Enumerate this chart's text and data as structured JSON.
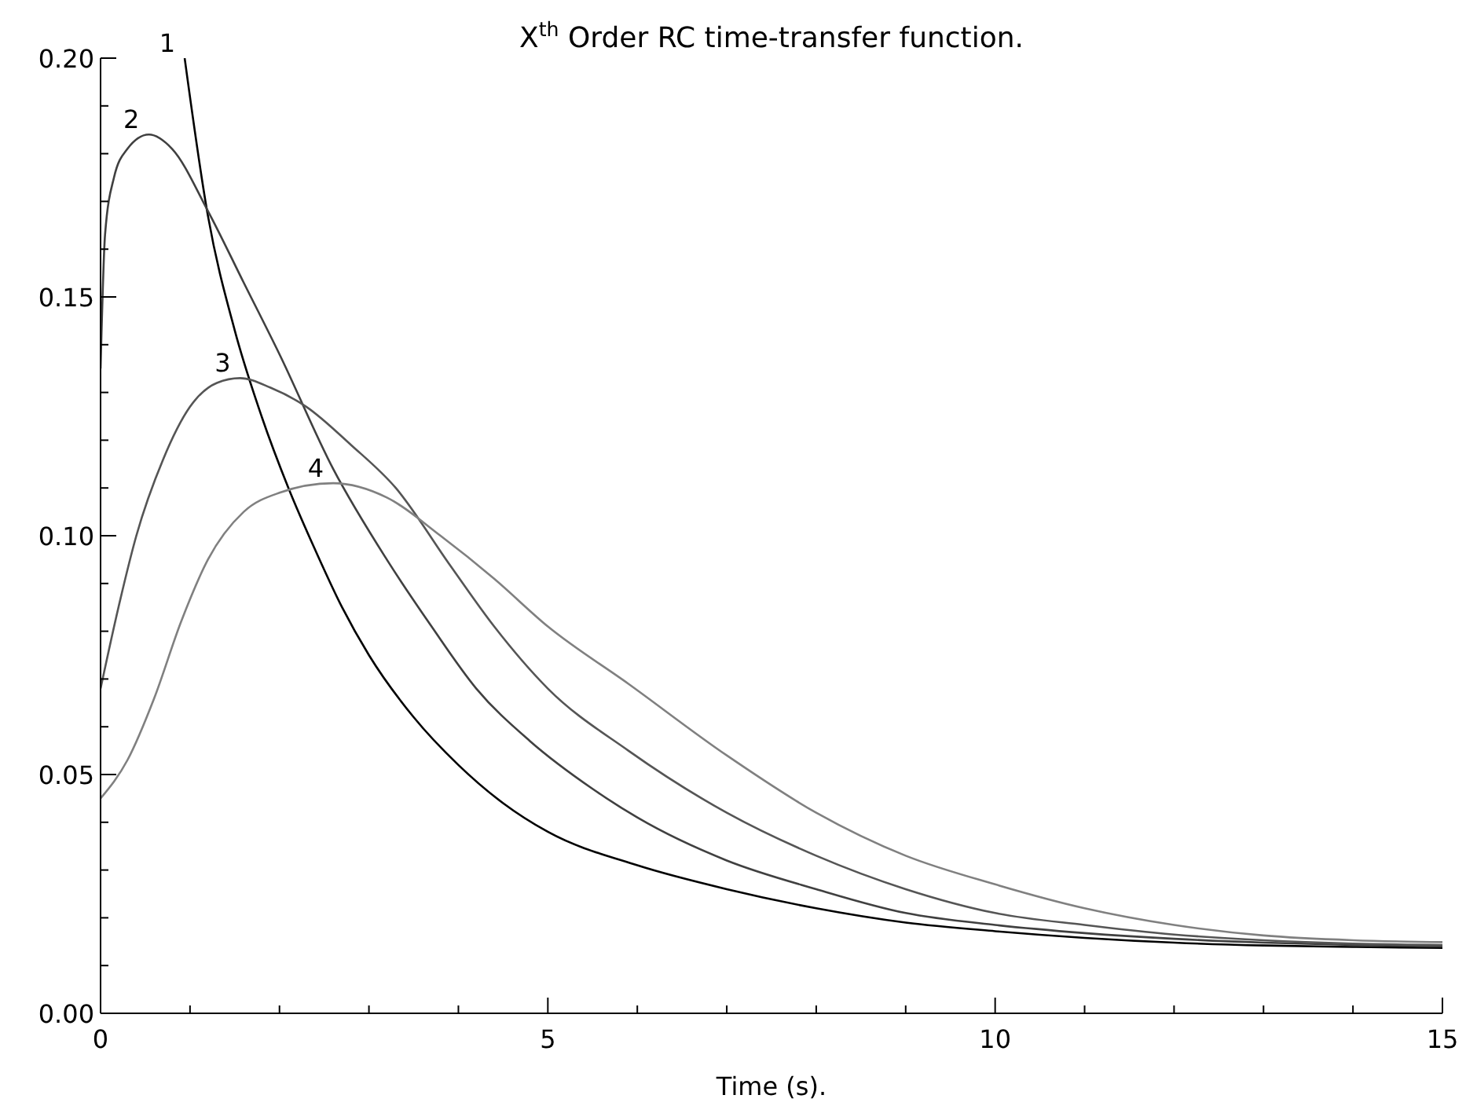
{
  "chart_data": {
    "type": "line",
    "title": "X$^{th}$ Order RC time-transfer function.",
    "xlabel": "Time (s).",
    "xlim": [
      0,
      15
    ],
    "xticks": [
      0,
      {
        "value": 1,
        "label": null
      },
      {
        "value": 2,
        "label": null
      },
      {
        "value": 3,
        "label": null
      },
      {
        "value": 4,
        "label": null
      },
      5,
      {
        "value": 6,
        "label": null
      },
      {
        "value": 7,
        "label": null
      },
      {
        "value": 8,
        "label": null
      },
      {
        "value": 9,
        "label": null
      },
      10,
      {
        "value": 11,
        "label": null
      },
      {
        "value": 12,
        "label": null
      },
      {
        "value": 13,
        "label": null
      },
      {
        "value": 14,
        "label": null
      },
      15
    ],
    "ylim": [
      0,
      0.2
    ],
    "yticks": [
      {
        "value": 0,
        "label": "0.00"
      },
      {
        "value": 0.01,
        "label": null
      },
      {
        "value": 0.02,
        "label": null
      },
      {
        "value": 0.03,
        "label": null
      },
      {
        "value": 0.04,
        "label": null
      },
      {
        "value": 0.05,
        "label": "0.05"
      },
      {
        "value": 0.06,
        "label": null
      },
      {
        "value": 0.07,
        "label": null
      },
      {
        "value": 0.08,
        "label": null
      },
      {
        "value": 0.09,
        "label": null
      },
      {
        "value": 0.1,
        "label": "0.10"
      },
      {
        "value": 0.11,
        "label": null
      },
      {
        "value": 0.12,
        "label": null
      },
      {
        "value": 0.13,
        "label": null
      },
      {
        "value": 0.14,
        "label": null
      },
      {
        "value": 0.15,
        "label": "0.15"
      },
      {
        "value": 0.16,
        "label": null
      },
      {
        "value": 0.17,
        "label": null
      },
      {
        "value": 0.18,
        "label": null
      },
      {
        "value": 0.19,
        "label": null
      },
      {
        "value": 0.2,
        "label": "0.20"
      }
    ],
    "grid": false,
    "legend": false,
    "marker": "none",
    "line_style": "solid",
    "series": [
      {
        "name": "1",
        "color": "#000000",
        "x": [
          0.94,
          1.2,
          1.5,
          1.8,
          2.1,
          2.4,
          2.7,
          3.0,
          3.5,
          4.0,
          4.5,
          5,
          6,
          7,
          8,
          9,
          10,
          11,
          12,
          13,
          14,
          15
        ],
        "values": [
          0.2,
          0.167,
          0.143,
          0.125,
          0.11,
          0.097,
          0.085,
          0.075,
          0.062,
          0.052,
          0.044,
          0.038,
          0.031,
          0.026,
          0.022,
          0.019,
          0.0172,
          0.0158,
          0.0148,
          0.0142,
          0.0139,
          0.0137
        ]
      },
      {
        "name": "2",
        "color": "#404040",
        "x": [
          0,
          0.05,
          0.15,
          0.3,
          0.54,
          0.8,
          1.2,
          1.6,
          2.0,
          2.6,
          3.2,
          3.7,
          4.2,
          4.8,
          5.5,
          6,
          7,
          8,
          9,
          10,
          11,
          12,
          13,
          14,
          15
        ],
        "values": [
          0.135,
          0.163,
          0.175,
          0.181,
          0.184,
          0.181,
          0.168,
          0.153,
          0.138,
          0.114,
          0.095,
          0.081,
          0.068,
          0.057,
          0.047,
          0.041,
          0.032,
          0.026,
          0.021,
          0.0185,
          0.0168,
          0.0156,
          0.0148,
          0.0143,
          0.014
        ]
      },
      {
        "name": "3",
        "color": "#555555",
        "x": [
          0,
          0.2,
          0.4,
          0.7,
          1.0,
          1.3,
          1.56,
          1.9,
          2.3,
          2.8,
          3.3,
          3.9,
          4.4,
          5,
          5.9,
          7,
          8,
          9,
          10,
          11,
          12,
          13,
          14,
          15
        ],
        "values": [
          0.068,
          0.085,
          0.1,
          0.116,
          0.127,
          0.132,
          0.133,
          0.131,
          0.127,
          0.119,
          0.11,
          0.094,
          0.081,
          0.068,
          0.055,
          0.042,
          0.033,
          0.026,
          0.021,
          0.0185,
          0.0165,
          0.0153,
          0.0146,
          0.0143
        ]
      },
      {
        "name": "4",
        "color": "#808080",
        "x": [
          0,
          0.3,
          0.6,
          0.9,
          1.2,
          1.6,
          2.0,
          2.6,
          3.2,
          3.8,
          4.4,
          5,
          5.9,
          7,
          8,
          9,
          10,
          11,
          12,
          13,
          14,
          15
        ],
        "values": [
          0.045,
          0.053,
          0.066,
          0.082,
          0.095,
          0.105,
          0.109,
          0.111,
          0.108,
          0.1,
          0.091,
          0.081,
          0.069,
          0.054,
          0.042,
          0.033,
          0.027,
          0.022,
          0.0185,
          0.0163,
          0.0153,
          0.0149
        ]
      }
    ]
  }
}
